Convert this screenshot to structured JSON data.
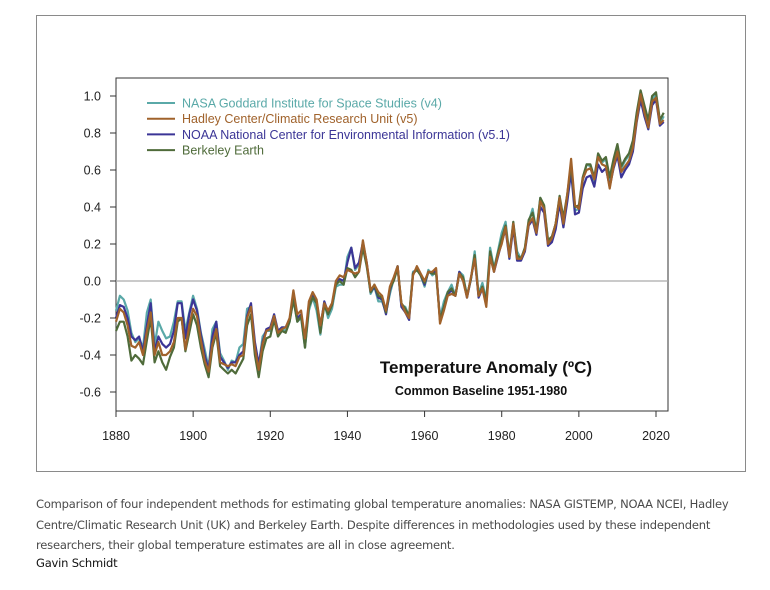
{
  "chart_data": {
    "type": "line",
    "title": "Temperature Anomaly (ºC)",
    "subtitle": "Common Baseline 1951-1980",
    "xlabel": "",
    "ylabel": "",
    "xlim": [
      1880,
      2023
    ],
    "ylim": [
      -0.7,
      1.1
    ],
    "grid": false,
    "reference_line": 0.0,
    "legend_position": "top-left",
    "x_ticks": [
      "1880",
      "1900",
      "1920",
      "1940",
      "1960",
      "1980",
      "2000",
      "2020"
    ],
    "y_ticks": [
      "1.0",
      "0.8",
      "0.6",
      "0.4",
      "0.2",
      "0.0",
      "-0.2",
      "-0.4",
      "-0.6"
    ],
    "x_start": 1880,
    "series": [
      {
        "name": "NASA Goddard Institute for Space Studies (v4)",
        "color": "#5aa9a8",
        "values": [
          -0.16,
          -0.08,
          -0.1,
          -0.16,
          -0.28,
          -0.33,
          -0.31,
          -0.36,
          -0.17,
          -0.1,
          -0.35,
          -0.22,
          -0.27,
          -0.31,
          -0.3,
          -0.22,
          -0.11,
          -0.11,
          -0.27,
          -0.17,
          -0.08,
          -0.15,
          -0.28,
          -0.37,
          -0.47,
          -0.26,
          -0.22,
          -0.39,
          -0.43,
          -0.48,
          -0.43,
          -0.44,
          -0.36,
          -0.34,
          -0.15,
          -0.14,
          -0.36,
          -0.46,
          -0.3,
          -0.27,
          -0.27,
          -0.19,
          -0.28,
          -0.26,
          -0.27,
          -0.22,
          -0.1,
          -0.22,
          -0.2,
          -0.36,
          -0.16,
          -0.09,
          -0.16,
          -0.29,
          -0.12,
          -0.2,
          -0.15,
          -0.03,
          -0.02,
          -0.02,
          0.13,
          0.18,
          0.06,
          0.09,
          0.2,
          0.09,
          -0.07,
          -0.03,
          -0.11,
          -0.11,
          -0.17,
          -0.07,
          0.01,
          0.08,
          -0.13,
          -0.14,
          -0.19,
          0.05,
          0.06,
          0.03,
          -0.03,
          0.06,
          0.03,
          0.05,
          -0.2,
          -0.11,
          -0.06,
          -0.02,
          -0.08,
          0.05,
          0.03,
          -0.08,
          0.01,
          0.16,
          -0.07,
          -0.01,
          -0.1,
          0.18,
          0.07,
          0.16,
          0.26,
          0.32,
          0.14,
          0.31,
          0.16,
          0.12,
          0.18,
          0.32,
          0.39,
          0.27,
          0.45,
          0.4,
          0.22,
          0.23,
          0.31,
          0.45,
          0.33,
          0.46,
          0.61,
          0.38,
          0.39,
          0.54,
          0.63,
          0.62,
          0.53,
          0.68,
          0.64,
          0.66,
          0.54,
          0.65,
          0.72,
          0.61,
          0.65,
          0.68,
          0.75,
          0.9,
          1.01,
          0.92,
          0.85,
          0.98,
          1.01,
          0.85,
          0.89
        ]
      },
      {
        "name": "Hadley Center/Climatic Research Unit (v5)",
        "color": "#a0622b",
        "values": [
          -0.22,
          -0.15,
          -0.17,
          -0.24,
          -0.35,
          -0.36,
          -0.33,
          -0.4,
          -0.27,
          -0.17,
          -0.4,
          -0.33,
          -0.4,
          -0.4,
          -0.38,
          -0.33,
          -0.2,
          -0.2,
          -0.37,
          -0.24,
          -0.15,
          -0.19,
          -0.32,
          -0.43,
          -0.49,
          -0.34,
          -0.26,
          -0.44,
          -0.45,
          -0.46,
          -0.45,
          -0.46,
          -0.41,
          -0.4,
          -0.2,
          -0.14,
          -0.36,
          -0.48,
          -0.34,
          -0.27,
          -0.26,
          -0.19,
          -0.28,
          -0.26,
          -0.25,
          -0.2,
          -0.05,
          -0.18,
          -0.16,
          -0.31,
          -0.11,
          -0.06,
          -0.1,
          -0.24,
          -0.12,
          -0.16,
          -0.12,
          0.0,
          0.03,
          0.02,
          0.06,
          0.05,
          0.04,
          0.05,
          0.22,
          0.1,
          -0.05,
          -0.02,
          -0.06,
          -0.08,
          -0.16,
          -0.03,
          0.02,
          0.08,
          -0.12,
          -0.17,
          -0.2,
          0.03,
          0.08,
          0.04,
          0.0,
          0.05,
          0.05,
          0.07,
          -0.23,
          -0.16,
          -0.08,
          -0.07,
          -0.08,
          0.04,
          0.0,
          -0.09,
          0.02,
          0.12,
          -0.08,
          -0.04,
          -0.14,
          0.13,
          0.05,
          0.14,
          0.2,
          0.29,
          0.13,
          0.31,
          0.12,
          0.12,
          0.17,
          0.31,
          0.34,
          0.26,
          0.43,
          0.39,
          0.2,
          0.23,
          0.31,
          0.45,
          0.31,
          0.47,
          0.66,
          0.41,
          0.39,
          0.55,
          0.6,
          0.61,
          0.55,
          0.67,
          0.63,
          0.62,
          0.5,
          0.62,
          0.7,
          0.59,
          0.62,
          0.65,
          0.72,
          0.87,
          1.01,
          0.91,
          0.83,
          0.97,
          0.99,
          0.85,
          0.87
        ]
      },
      {
        "name": "NOAA National Center for Environmental Information (v5.1)",
        "color": "#3b3596",
        "values": [
          -0.2,
          -0.13,
          -0.14,
          -0.2,
          -0.3,
          -0.32,
          -0.3,
          -0.38,
          -0.24,
          -0.12,
          -0.38,
          -0.3,
          -0.34,
          -0.36,
          -0.34,
          -0.27,
          -0.12,
          -0.12,
          -0.31,
          -0.18,
          -0.1,
          -0.16,
          -0.29,
          -0.4,
          -0.48,
          -0.3,
          -0.22,
          -0.41,
          -0.44,
          -0.47,
          -0.44,
          -0.44,
          -0.4,
          -0.38,
          -0.19,
          -0.12,
          -0.33,
          -0.45,
          -0.33,
          -0.26,
          -0.25,
          -0.18,
          -0.27,
          -0.25,
          -0.25,
          -0.21,
          -0.08,
          -0.2,
          -0.18,
          -0.33,
          -0.13,
          -0.07,
          -0.11,
          -0.25,
          -0.11,
          -0.17,
          -0.13,
          -0.01,
          0.01,
          0.0,
          0.1,
          0.18,
          0.07,
          0.1,
          0.21,
          0.1,
          -0.06,
          -0.03,
          -0.09,
          -0.1,
          -0.18,
          -0.05,
          0.01,
          0.08,
          -0.14,
          -0.17,
          -0.21,
          0.04,
          0.07,
          0.03,
          -0.02,
          0.05,
          0.04,
          0.06,
          -0.21,
          -0.14,
          -0.07,
          -0.05,
          -0.08,
          0.05,
          0.01,
          -0.09,
          0.01,
          0.13,
          -0.09,
          -0.04,
          -0.12,
          0.14,
          0.05,
          0.13,
          0.21,
          0.28,
          0.12,
          0.29,
          0.11,
          0.11,
          0.16,
          0.3,
          0.33,
          0.25,
          0.4,
          0.37,
          0.19,
          0.21,
          0.28,
          0.42,
          0.29,
          0.43,
          0.59,
          0.36,
          0.37,
          0.5,
          0.56,
          0.57,
          0.51,
          0.63,
          0.59,
          0.61,
          0.51,
          0.61,
          0.68,
          0.56,
          0.6,
          0.63,
          0.7,
          0.86,
          0.98,
          0.89,
          0.82,
          0.95,
          0.98,
          0.84,
          0.86
        ]
      },
      {
        "name": "Berkeley Earth",
        "color": "#4f6b3a",
        "values": [
          -0.27,
          -0.22,
          -0.22,
          -0.3,
          -0.43,
          -0.4,
          -0.42,
          -0.45,
          -0.32,
          -0.2,
          -0.44,
          -0.38,
          -0.44,
          -0.48,
          -0.41,
          -0.36,
          -0.22,
          -0.2,
          -0.38,
          -0.28,
          -0.18,
          -0.24,
          -0.36,
          -0.45,
          -0.52,
          -0.36,
          -0.28,
          -0.46,
          -0.48,
          -0.5,
          -0.48,
          -0.5,
          -0.46,
          -0.42,
          -0.24,
          -0.18,
          -0.4,
          -0.52,
          -0.38,
          -0.31,
          -0.3,
          -0.21,
          -0.3,
          -0.27,
          -0.28,
          -0.22,
          -0.1,
          -0.22,
          -0.19,
          -0.36,
          -0.14,
          -0.09,
          -0.12,
          -0.28,
          -0.13,
          -0.18,
          -0.13,
          -0.02,
          0.0,
          -0.02,
          0.07,
          0.06,
          0.02,
          0.05,
          0.18,
          0.08,
          -0.06,
          -0.02,
          -0.08,
          -0.09,
          -0.17,
          -0.04,
          0.0,
          0.07,
          -0.12,
          -0.15,
          -0.19,
          0.04,
          0.06,
          0.03,
          -0.01,
          0.05,
          0.04,
          0.04,
          -0.21,
          -0.14,
          -0.06,
          -0.04,
          -0.08,
          0.04,
          0.02,
          -0.08,
          0.01,
          0.14,
          -0.08,
          -0.03,
          -0.11,
          0.16,
          0.06,
          0.15,
          0.23,
          0.3,
          0.14,
          0.32,
          0.14,
          0.12,
          0.18,
          0.33,
          0.37,
          0.27,
          0.45,
          0.41,
          0.22,
          0.24,
          0.31,
          0.46,
          0.34,
          0.47,
          0.63,
          0.4,
          0.41,
          0.56,
          0.63,
          0.63,
          0.56,
          0.69,
          0.65,
          0.67,
          0.56,
          0.66,
          0.74,
          0.62,
          0.66,
          0.69,
          0.76,
          0.91,
          1.03,
          0.95,
          0.87,
          1.0,
          1.02,
          0.87,
          0.91
        ]
      }
    ]
  },
  "caption": "Comparison of four independent methods for estimating global temperature anomalies: NASA GISTEMP, NOAA NCEI, Hadley Centre/Climatic Research Unit (UK) and Berkeley Earth. Despite differences in methodologies used by these independent researchers, their global temperature estimates are all in close agreement.",
  "credit": "Gavin Schmidt"
}
